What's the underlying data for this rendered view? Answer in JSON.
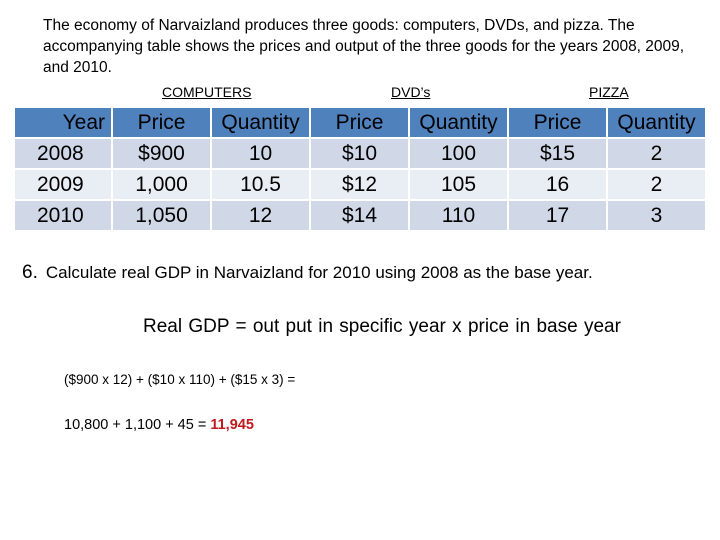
{
  "intro": "The economy of Narvaizland produces three goods: computers, DVDs, and pizza. The accompanying table shows the prices and output of the three goods for the years 2008, 2009, and 2010.",
  "group_headers": {
    "computers": "COMPUTERS",
    "dvds": "DVD’s",
    "pizza": "PIZZA"
  },
  "table": {
    "headers": [
      "Year",
      "Price",
      "Quantity",
      "Price",
      "Quantity",
      "Price",
      "Quantity"
    ],
    "rows": [
      [
        "2008",
        "$900",
        "10",
        "$10",
        "100",
        "$15",
        "2"
      ],
      [
        "2009",
        "1,000",
        "10.5",
        "$12",
        "105",
        "16",
        "2"
      ],
      [
        "2010",
        "1,050",
        "12",
        "$14",
        "110",
        "17",
        "3"
      ]
    ]
  },
  "question": {
    "number": "6.",
    "text": "Calculate real GDP in Narvaizland for 2010 using 2008 as the base year."
  },
  "formula": "Real GDP = out put in specific year  x  price in base year",
  "calculation": {
    "line1": "($900 x 12)  +  ($10 x 110)  +  ($15 x 3) =",
    "line2": "10,800 + 1,100  +  45 = ",
    "answer": "11,945",
    "answer_color": "#c0191e"
  },
  "colors": {
    "header_fill": "#4f81bd",
    "row_fill_a": "#d0d8e8",
    "row_fill_b": "#e9edf4"
  }
}
